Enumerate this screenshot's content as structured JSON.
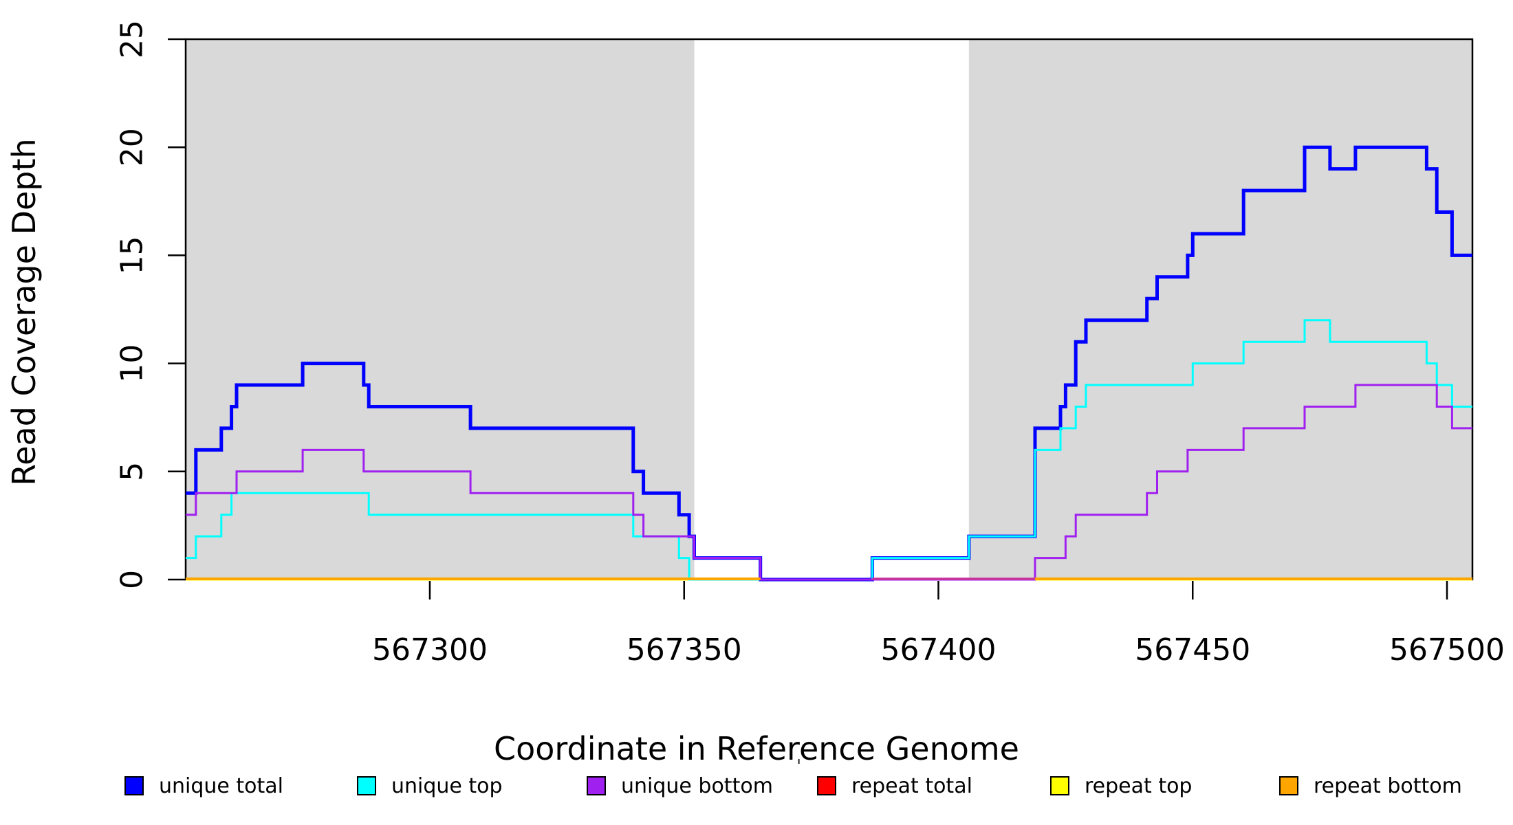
{
  "chart_data": {
    "type": "line",
    "subtype": "step-coverage-plot",
    "title": "",
    "xlabel": "Coordinate in Reference Genome",
    "ylabel": "Read Coverage Depth",
    "xlim": [
      567252,
      567505
    ],
    "ylim": [
      0,
      25
    ],
    "x_ticks": [
      "567300",
      "567350",
      "567400",
      "567450",
      "567500"
    ],
    "x_tick_values": [
      567300,
      567350,
      567400,
      567450,
      567500
    ],
    "y_ticks": [
      "0",
      "5",
      "10",
      "15",
      "20",
      "25"
    ],
    "y_tick_values": [
      0,
      5,
      10,
      15,
      20,
      25
    ],
    "grid": false,
    "plot_background": "#FFFFFF",
    "box_color": "#000000",
    "shaded_regions": [
      {
        "x0": 567252,
        "x1": 567352,
        "color": "#D9D9D9"
      },
      {
        "x0": 567406,
        "x1": 567505,
        "color": "#D9D9D9"
      }
    ],
    "series": [
      {
        "name": "repeat total",
        "color": "#FF0000",
        "lw": 3,
        "steps": [
          [
            567252,
            0
          ]
        ]
      },
      {
        "name": "repeat top",
        "color": "#FFFF00",
        "lw": 3,
        "steps": [
          [
            567252,
            0
          ]
        ]
      },
      {
        "name": "unique total",
        "color": "#0000FF",
        "lw": 5,
        "steps": [
          [
            567252,
            4
          ],
          [
            567254,
            6
          ],
          [
            567259,
            7
          ],
          [
            567261,
            8
          ],
          [
            567262,
            9
          ],
          [
            567275,
            10
          ],
          [
            567287,
            9
          ],
          [
            567288,
            8
          ],
          [
            567308,
            7
          ],
          [
            567340,
            5
          ],
          [
            567342,
            4
          ],
          [
            567349,
            3
          ],
          [
            567351,
            2
          ],
          [
            567352,
            1
          ],
          [
            567365,
            0
          ],
          [
            567387,
            1
          ],
          [
            567406,
            2
          ],
          [
            567419,
            7
          ],
          [
            567424,
            8
          ],
          [
            567425,
            9
          ],
          [
            567427,
            11
          ],
          [
            567429,
            12
          ],
          [
            567441,
            13
          ],
          [
            567443,
            14
          ],
          [
            567449,
            15
          ],
          [
            567450,
            16
          ],
          [
            567460,
            18
          ],
          [
            567472,
            20
          ],
          [
            567477,
            19
          ],
          [
            567482,
            20
          ],
          [
            567496,
            19
          ],
          [
            567498,
            17
          ],
          [
            567501,
            15
          ]
        ]
      },
      {
        "name": "unique top",
        "color": "#00FFFF",
        "lw": 3,
        "steps": [
          [
            567252,
            1
          ],
          [
            567254,
            2
          ],
          [
            567259,
            3
          ],
          [
            567261,
            4
          ],
          [
            567288,
            3
          ],
          [
            567340,
            2
          ],
          [
            567349,
            1
          ],
          [
            567351,
            0
          ],
          [
            567387,
            1
          ],
          [
            567406,
            2
          ],
          [
            567419,
            6
          ],
          [
            567424,
            7
          ],
          [
            567427,
            8
          ],
          [
            567429,
            9
          ],
          [
            567450,
            10
          ],
          [
            567460,
            11
          ],
          [
            567472,
            12
          ],
          [
            567477,
            11
          ],
          [
            567496,
            10
          ],
          [
            567498,
            9
          ],
          [
            567501,
            8
          ]
        ]
      },
      {
        "name": "unique bottom",
        "color": "#A020F0",
        "lw": 3,
        "steps": [
          [
            567252,
            3
          ],
          [
            567254,
            4
          ],
          [
            567262,
            5
          ],
          [
            567275,
            6
          ],
          [
            567287,
            5
          ],
          [
            567308,
            4
          ],
          [
            567340,
            3
          ],
          [
            567342,
            2
          ],
          [
            567352,
            1
          ],
          [
            567365,
            0
          ],
          [
            567419,
            1
          ],
          [
            567425,
            2
          ],
          [
            567427,
            3
          ],
          [
            567441,
            4
          ],
          [
            567443,
            5
          ],
          [
            567449,
            6
          ],
          [
            567460,
            7
          ],
          [
            567472,
            8
          ],
          [
            567482,
            9
          ],
          [
            567498,
            8
          ],
          [
            567501,
            7
          ]
        ]
      },
      {
        "name": "repeat bottom",
        "color": "#FFA500",
        "lw": 4,
        "steps": [
          [
            567252,
            0
          ]
        ]
      }
    ],
    "baseline_overlays": [
      {
        "x0": 567252,
        "x1": 567365,
        "color": "#FFA500",
        "lw": 4
      },
      {
        "x0": 567387,
        "x1": 567419,
        "color": "#C93399",
        "lw": 3.5
      },
      {
        "x0": 567419,
        "x1": 567505,
        "color": "#FFA500",
        "lw": 4
      }
    ],
    "legend": {
      "position": "bottom",
      "entries": [
        {
          "label": "unique total",
          "color": "#0000FF"
        },
        {
          "label": "unique top",
          "color": "#00FFFF"
        },
        {
          "label": "unique bottom",
          "color": "#A020F0"
        },
        {
          "label": "repeat total",
          "color": "#FF0000"
        },
        {
          "label": "repeat top",
          "color": "#FFFF00"
        },
        {
          "label": "repeat bottom",
          "color": "#FFA500"
        }
      ]
    },
    "annotations": {
      "stray_mark": "'"
    }
  }
}
